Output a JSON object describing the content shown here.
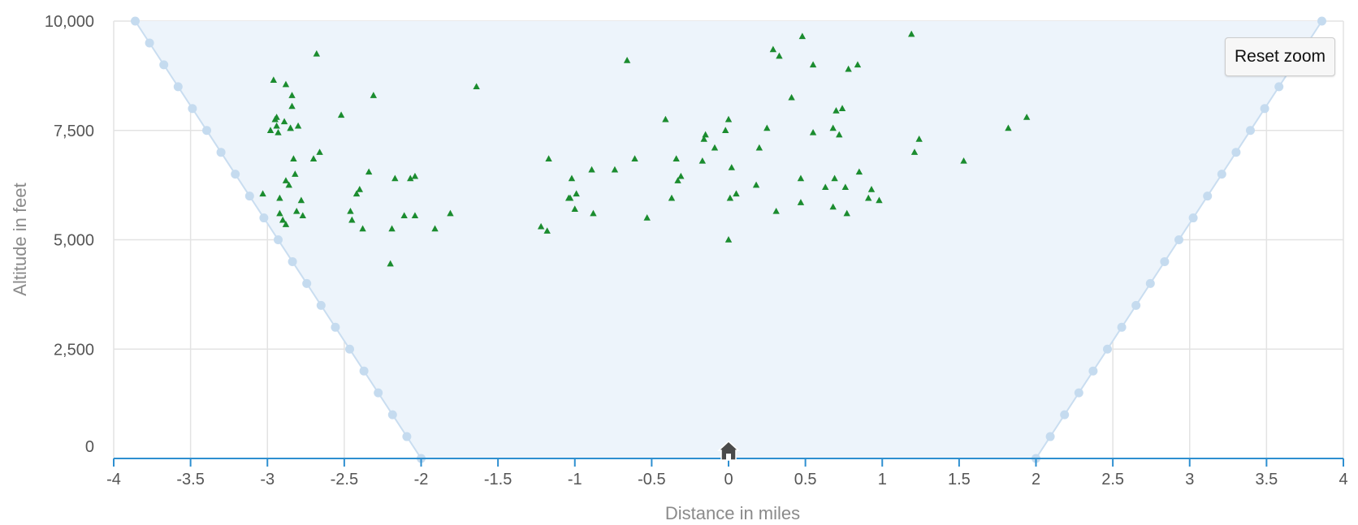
{
  "reset_zoom_label": "Reset zoom",
  "colors": {
    "envelope_fill": "#edf4fb",
    "envelope_line": "#c9ddf0",
    "envelope_marker": "#c5dbef",
    "grid": "#e3e3e3",
    "x_axis": "#2e8fd0",
    "points": "#1b8c2f",
    "home_marker": "#4a4a4a"
  },
  "chart_data": {
    "type": "scatter",
    "xlabel": "Distance in miles",
    "ylabel": "Altitude in feet",
    "xlim": [
      -4,
      4
    ],
    "ylim": [
      0,
      10000
    ],
    "x_ticks": [
      -4,
      -3.5,
      -3,
      -2.5,
      -2,
      -1.5,
      -1,
      -0.5,
      0,
      0.5,
      1,
      1.5,
      2,
      2.5,
      3,
      3.5,
      4
    ],
    "x_tick_labels": [
      "-4",
      "-3.5",
      "-3",
      "-2.5",
      "-2",
      "-1.5",
      "-1",
      "-0.5",
      "0",
      "0.5",
      "1",
      "1.5",
      "2",
      "2.5",
      "3",
      "3.5",
      "4"
    ],
    "y_ticks": [
      0,
      2500,
      5000,
      7500,
      10000
    ],
    "y_tick_labels": [
      "0",
      "2,500",
      "5,000",
      "7,500",
      "10,000"
    ],
    "grid": true,
    "envelope": {
      "type": "area",
      "marker": "circle",
      "marker_spacing_ft": 500,
      "left": [
        [
          -3.86,
          10000
        ],
        [
          -2.0,
          0
        ]
      ],
      "right": [
        [
          2.0,
          0
        ],
        [
          3.86,
          10000
        ]
      ]
    },
    "home_marker": {
      "x": 0,
      "y": 0,
      "icon": "home-icon"
    },
    "series": [
      {
        "marker": "triangle",
        "points": [
          [
            -3.03,
            6050
          ],
          [
            -2.98,
            7500
          ],
          [
            -2.96,
            8650
          ],
          [
            -2.95,
            7750
          ],
          [
            -2.94,
            7800
          ],
          [
            -2.94,
            7600
          ],
          [
            -2.93,
            7450
          ],
          [
            -2.92,
            5600
          ],
          [
            -2.92,
            5950
          ],
          [
            -2.9,
            5450
          ],
          [
            -2.89,
            7700
          ],
          [
            -2.88,
            8550
          ],
          [
            -2.88,
            6350
          ],
          [
            -2.88,
            5350
          ],
          [
            -2.86,
            6250
          ],
          [
            -2.85,
            7550
          ],
          [
            -2.85,
            7550
          ],
          [
            -2.84,
            8300
          ],
          [
            -2.84,
            8050
          ],
          [
            -2.83,
            6850
          ],
          [
            -2.82,
            6500
          ],
          [
            -2.81,
            5650
          ],
          [
            -2.8,
            7600
          ],
          [
            -2.78,
            5900
          ],
          [
            -2.77,
            5550
          ],
          [
            -2.7,
            6850
          ],
          [
            -2.68,
            9250
          ],
          [
            -2.66,
            7000
          ],
          [
            -2.52,
            7850
          ],
          [
            -2.46,
            5650
          ],
          [
            -2.45,
            5450
          ],
          [
            -2.42,
            6050
          ],
          [
            -2.4,
            6150
          ],
          [
            -2.38,
            5250
          ],
          [
            -2.34,
            6550
          ],
          [
            -2.31,
            8300
          ],
          [
            -2.2,
            4450
          ],
          [
            -2.19,
            5250
          ],
          [
            -2.17,
            6400
          ],
          [
            -2.11,
            5550
          ],
          [
            -2.07,
            6400
          ],
          [
            -2.04,
            6450
          ],
          [
            -2.04,
            5550
          ],
          [
            -1.91,
            5250
          ],
          [
            -1.81,
            5600
          ],
          [
            -1.64,
            8500
          ],
          [
            -1.22,
            5300
          ],
          [
            -1.18,
            5200
          ],
          [
            -1.17,
            6850
          ],
          [
            -1.04,
            5950
          ],
          [
            -1.03,
            5950
          ],
          [
            -1.02,
            6400
          ],
          [
            -1.0,
            5700
          ],
          [
            -0.99,
            6050
          ],
          [
            -0.89,
            6600
          ],
          [
            -0.88,
            5600
          ],
          [
            -0.74,
            6600
          ],
          [
            -0.66,
            9100
          ],
          [
            -0.61,
            6850
          ],
          [
            -0.53,
            5500
          ],
          [
            -0.41,
            7750
          ],
          [
            -0.37,
            5950
          ],
          [
            -0.34,
            6850
          ],
          [
            -0.33,
            6350
          ],
          [
            -0.31,
            6450
          ],
          [
            -0.17,
            6800
          ],
          [
            -0.16,
            7300
          ],
          [
            -0.15,
            7400
          ],
          [
            -0.09,
            7100
          ],
          [
            -0.02,
            7500
          ],
          [
            0.0,
            5000
          ],
          [
            0.0,
            7750
          ],
          [
            0.01,
            5950
          ],
          [
            0.02,
            6650
          ],
          [
            0.05,
            6050
          ],
          [
            0.18,
            6250
          ],
          [
            0.2,
            7100
          ],
          [
            0.25,
            7550
          ],
          [
            0.29,
            9350
          ],
          [
            0.31,
            5650
          ],
          [
            0.33,
            9200
          ],
          [
            0.41,
            8250
          ],
          [
            0.47,
            6400
          ],
          [
            0.47,
            5850
          ],
          [
            0.48,
            9650
          ],
          [
            0.55,
            9000
          ],
          [
            0.55,
            7450
          ],
          [
            0.63,
            6200
          ],
          [
            0.68,
            7550
          ],
          [
            0.68,
            5750
          ],
          [
            0.69,
            6400
          ],
          [
            0.7,
            7950
          ],
          [
            0.72,
            7400
          ],
          [
            0.74,
            8000
          ],
          [
            0.76,
            6200
          ],
          [
            0.77,
            5600
          ],
          [
            0.78,
            8900
          ],
          [
            0.84,
            9000
          ],
          [
            0.85,
            6550
          ],
          [
            0.91,
            5950
          ],
          [
            0.93,
            6150
          ],
          [
            0.98,
            5900
          ],
          [
            1.19,
            9700
          ],
          [
            1.21,
            7000
          ],
          [
            1.24,
            7300
          ],
          [
            1.53,
            6800
          ],
          [
            1.82,
            7550
          ],
          [
            1.94,
            7800
          ]
        ]
      }
    ]
  }
}
